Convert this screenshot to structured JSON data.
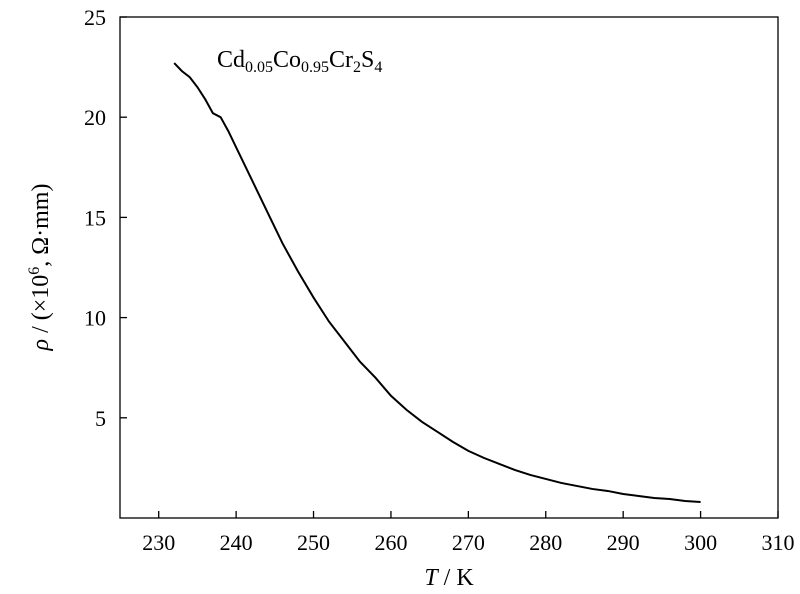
{
  "chart_data": {
    "type": "line",
    "annotation": [
      "Cd",
      "0.05",
      "Co",
      "0.95",
      "Cr",
      "2",
      "S",
      "4"
    ],
    "xlabel": [
      "T",
      " / K"
    ],
    "ylabel": [
      "ρ",
      " / (×10",
      "6",
      ", Ω·mm)"
    ],
    "x": [
      232,
      233,
      234,
      235,
      236,
      237,
      238,
      239,
      240,
      242,
      244,
      246,
      248,
      250,
      252,
      254,
      256,
      258,
      260,
      262,
      264,
      266,
      268,
      270,
      272,
      274,
      276,
      278,
      280,
      282,
      284,
      286,
      288,
      290,
      292,
      294,
      296,
      298,
      300
    ],
    "series": [
      {
        "color": "#000000",
        "values": [
          22.7,
          22.3,
          22.0,
          21.5,
          20.9,
          20.2,
          20.0,
          19.3,
          18.5,
          16.9,
          15.3,
          13.7,
          12.3,
          11.0,
          9.8,
          8.8,
          7.8,
          7.0,
          6.1,
          5.4,
          4.8,
          4.3,
          3.8,
          3.35,
          3.0,
          2.7,
          2.4,
          2.15,
          1.95,
          1.75,
          1.6,
          1.45,
          1.35,
          1.2,
          1.1,
          1.0,
          0.95,
          0.85,
          0.8
        ]
      }
    ],
    "xlim": [
      225,
      310
    ],
    "xticks": [
      230,
      240,
      250,
      260,
      270,
      280,
      290,
      300,
      310
    ],
    "ylim": [
      0,
      25
    ],
    "yticks": [
      5,
      10,
      15,
      20,
      25
    ]
  }
}
